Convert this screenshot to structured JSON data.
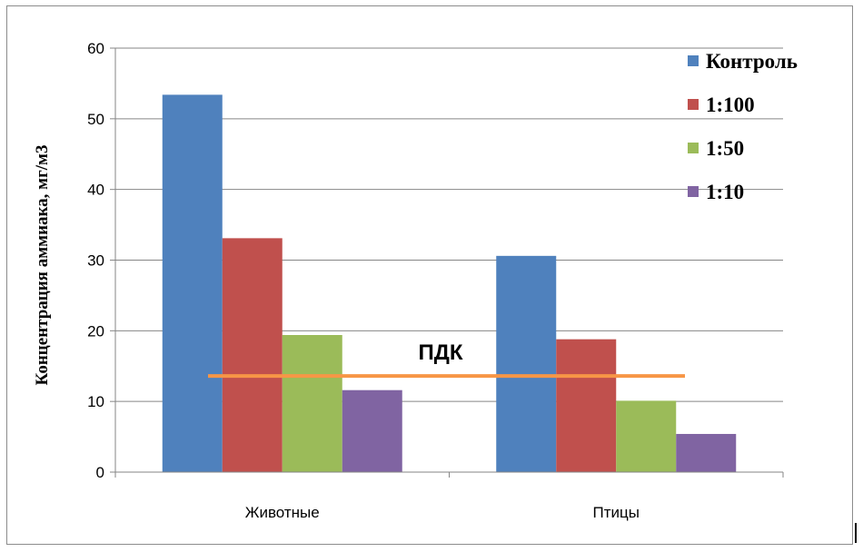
{
  "chart_data": {
    "type": "bar",
    "title": "",
    "xlabel": "",
    "ylabel": "Концентрация  аммиака, мг/м3",
    "categories": [
      "Животные",
      "Птицы"
    ],
    "series": [
      {
        "name": "Контроль",
        "color": "#4f81bd",
        "values": [
          53.4,
          30.6
        ]
      },
      {
        "name": "1:100",
        "color": "#c0504d",
        "values": [
          33.1,
          18.8
        ]
      },
      {
        "name": "1:50",
        "color": "#9bbb59",
        "values": [
          19.4,
          10.1
        ]
      },
      {
        "name": "1:10",
        "color": "#8064a2",
        "values": [
          11.6,
          5.4
        ]
      }
    ],
    "ylim": [
      0,
      60
    ],
    "yticks": [
      0,
      10,
      20,
      30,
      40,
      50,
      60
    ],
    "grid": true,
    "legend_position": "top-right",
    "reference_line": {
      "label": "ПДК",
      "value": 13.6,
      "color": "#f79646"
    }
  }
}
